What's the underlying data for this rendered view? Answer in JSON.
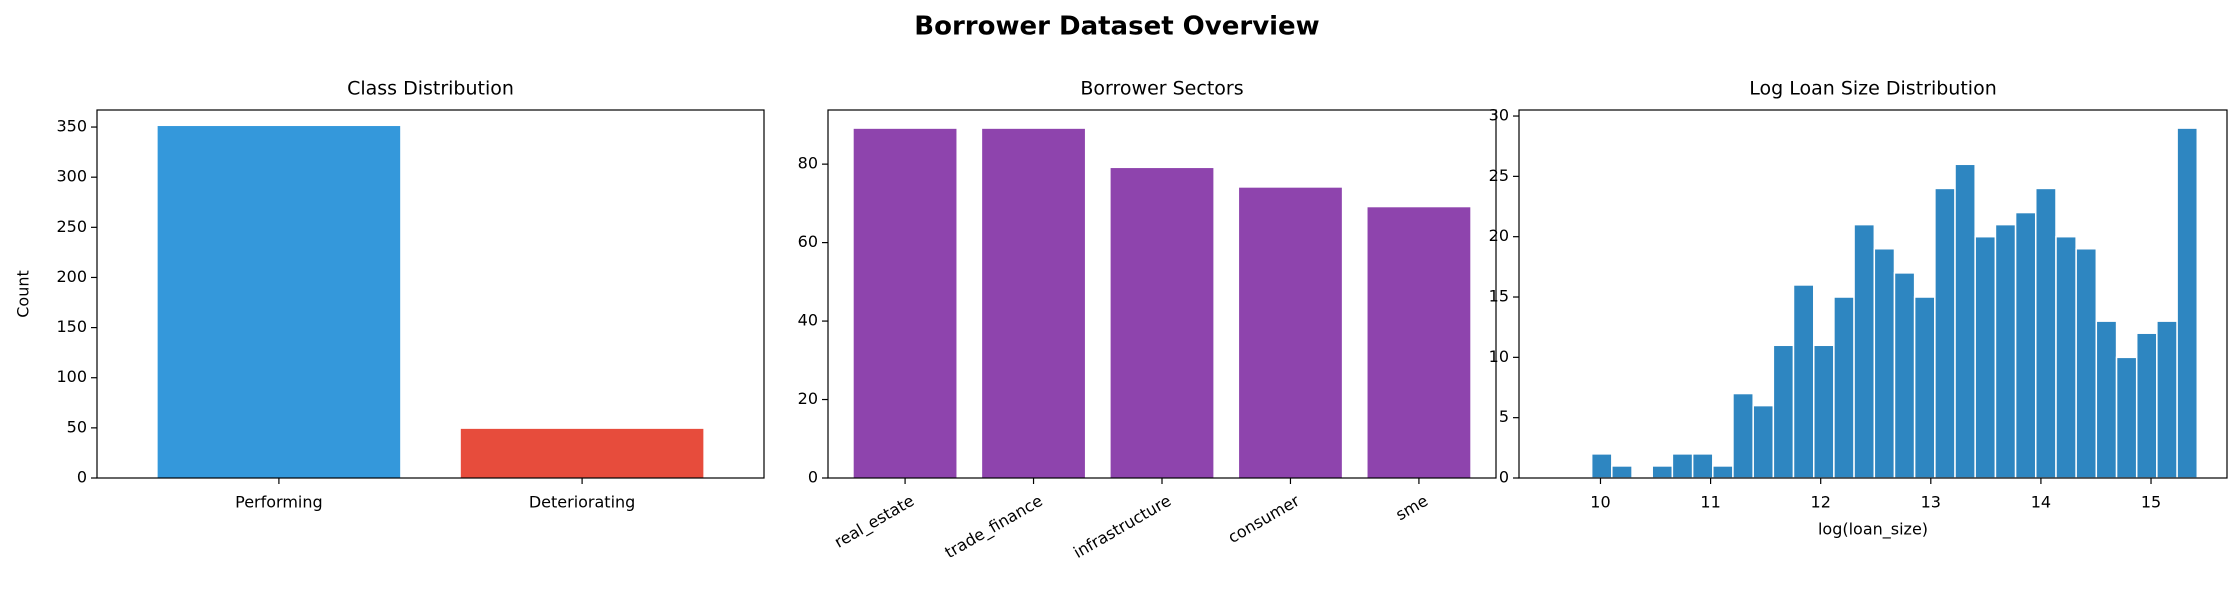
{
  "title": "Borrower Dataset Overview",
  "chart_data": [
    {
      "type": "bar",
      "title": "Class Distribution",
      "ylabel": "Count",
      "categories": [
        "Performing",
        "Deteriorating"
      ],
      "values": [
        351,
        49
      ],
      "colors": [
        "#3498db",
        "#e74c3c"
      ],
      "ylim": [
        0,
        367
      ],
      "yticks": [
        0,
        50,
        100,
        150,
        200,
        250,
        300,
        350
      ]
    },
    {
      "type": "bar",
      "title": "Borrower Sectors",
      "categories": [
        "real_estate",
        "trade_finance",
        "infrastructure",
        "consumer",
        "sme"
      ],
      "values": [
        89,
        89,
        79,
        74,
        69
      ],
      "color": "#8e44ad",
      "xtick_rotation": 30,
      "ylim": [
        0,
        93.8
      ],
      "yticks": [
        0,
        20,
        40,
        60,
        80
      ]
    },
    {
      "type": "histogram",
      "title": "Log Loan Size Distribution",
      "xlabel": "log(loan_size)",
      "bins": [
        9.92,
        10.103,
        10.287,
        10.47,
        10.653,
        10.837,
        11.02,
        11.203,
        11.387,
        11.57,
        11.753,
        11.937,
        12.12,
        12.303,
        12.487,
        12.67,
        12.853,
        13.037,
        13.22,
        13.403,
        13.587,
        13.77,
        13.953,
        14.137,
        14.32,
        14.503,
        14.687,
        14.87,
        15.053,
        15.237,
        15.42
      ],
      "values": [
        2,
        1,
        0,
        1,
        2,
        2,
        1,
        7,
        6,
        11,
        16,
        11,
        15,
        21,
        19,
        17,
        15,
        24,
        26,
        20,
        21,
        22,
        24,
        20,
        19,
        13,
        10,
        12,
        13,
        29
      ],
      "color": "#2e86c1",
      "xlim": [
        9.26,
        15.69
      ],
      "xticks": [
        10,
        11,
        12,
        13,
        14,
        15
      ],
      "ylim": [
        0,
        30.5
      ],
      "yticks": [
        0,
        5,
        10,
        15,
        20,
        25,
        30
      ]
    }
  ]
}
